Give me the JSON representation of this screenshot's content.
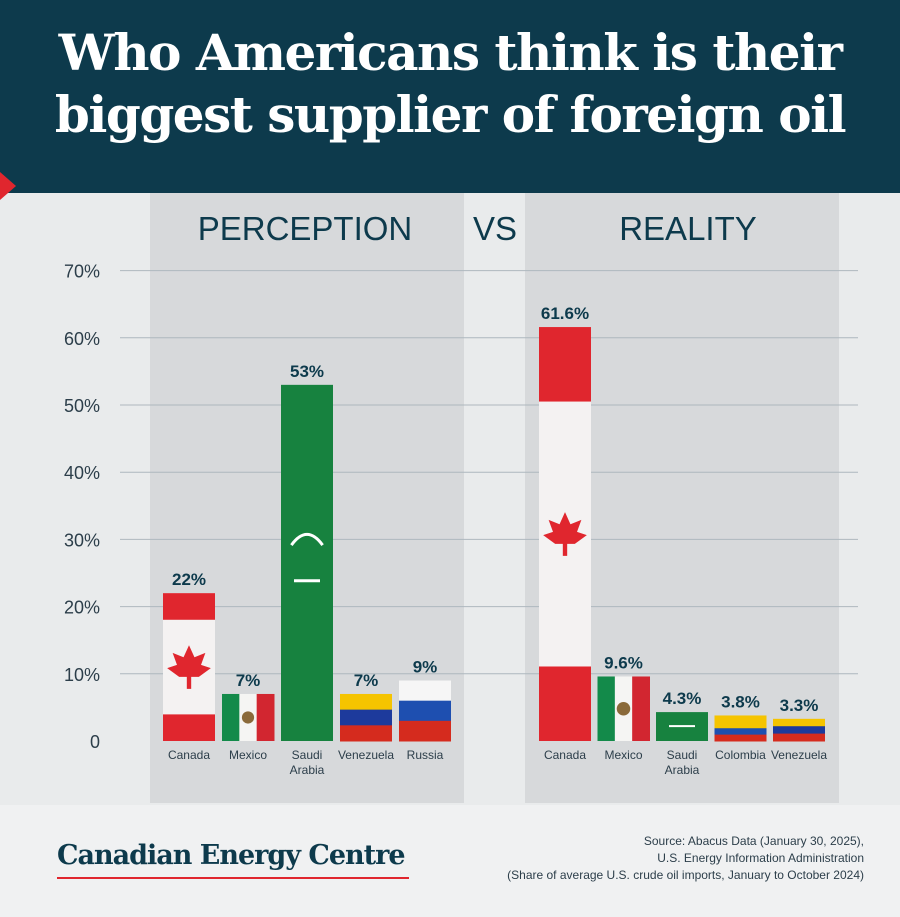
{
  "header": {
    "title_line1": "Who Americans think is their",
    "title_line2": "biggest supplier of foreign oil"
  },
  "chart_data": {
    "type": "bar",
    "ylim": [
      0,
      70
    ],
    "yticks": [
      "0",
      "10%",
      "20%",
      "30%",
      "40%",
      "50%",
      "60%",
      "70%"
    ],
    "grid": true,
    "vs_label": "VS",
    "panels": [
      {
        "heading": "PERCEPTION",
        "categories": [
          "Canada",
          "Mexico",
          "Saudi Arabia",
          "Venezuela",
          "Russia"
        ],
        "values": [
          22,
          7,
          53,
          7,
          9
        ],
        "value_labels": [
          "22%",
          "7%",
          "53%",
          "7%",
          "9%"
        ]
      },
      {
        "heading": "REALITY",
        "categories": [
          "Canada",
          "Mexico",
          "Saudi Arabia",
          "Colombia",
          "Venezuela"
        ],
        "values": [
          61.6,
          9.6,
          4.3,
          3.8,
          3.3
        ],
        "value_labels": [
          "61.6%",
          "9.6%",
          "4.3%",
          "3.8%",
          "3.3%"
        ]
      }
    ]
  },
  "colors": {
    "header_bg": "#0d3a4c",
    "accent_red": "#e0262e",
    "panel_bg": "#d7d9db",
    "text_dark": "#0d3a4c",
    "canada_red": "#e0262e",
    "mexico_green": "#138a4a",
    "saudi_green": "#17823f",
    "venezuela_yellow": "#f5c400",
    "venezuela_blue": "#1d3a9c",
    "russia_blue": "#1e4fb0",
    "colombia_yellow": "#f5c400"
  },
  "footer": {
    "brand": "Canadian Energy Centre",
    "source_line1": "Source: Abacus Data (January 30, 2025),",
    "source_line2": "U.S. Energy Information Administration",
    "source_line3": "(Share of average U.S. crude oil imports, January to October 2024)"
  }
}
